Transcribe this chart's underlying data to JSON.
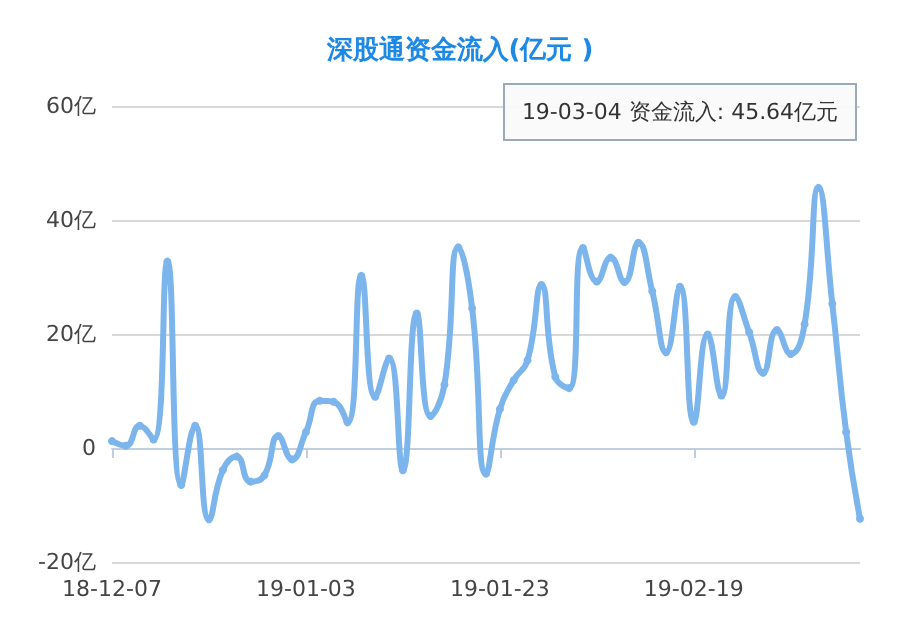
{
  "chart_data": {
    "type": "line",
    "title": "深股通资金流入(亿元 )",
    "categories": [
      "18-12-07",
      null,
      null,
      null,
      null,
      null,
      null,
      null,
      null,
      null,
      null,
      null,
      null,
      null,
      "19-01-03",
      null,
      null,
      null,
      null,
      null,
      null,
      null,
      null,
      null,
      null,
      null,
      null,
      null,
      "19-01-23",
      null,
      null,
      null,
      null,
      null,
      null,
      null,
      null,
      null,
      null,
      null,
      null,
      null,
      "19-02-19",
      null,
      null,
      null,
      null,
      null,
      null,
      null,
      null,
      null,
      null,
      null,
      null
    ],
    "series": [
      {
        "color": "#7cb5ec",
        "values": [
          1.2,
          0.4,
          3.9,
          1.5,
          32.7,
          -6.5,
          3.9,
          -12.5,
          -3.9,
          -1.5,
          -5.9,
          -4.8,
          2.1,
          -2.0,
          2.8,
          8.3,
          8.1,
          4.5,
          30.2,
          9.0,
          15.7,
          -3.9,
          23.6,
          5.6,
          11.1,
          35.2,
          24.5,
          -4.5,
          6.8,
          11.9,
          15.4,
          28.6,
          12.5,
          10.5,
          35.1,
          29.2,
          33.4,
          29.1,
          36.0,
          27.5,
          16.8,
          28.3,
          4.6,
          19.9,
          9.2,
          26.5,
          20.3,
          13.2,
          20.7,
          16.5,
          21.7,
          45.64,
          25.3,
          2.8,
          -12.4
        ]
      }
    ],
    "ylim": [
      -20,
      60
    ],
    "yticks": [
      {
        "value": -20,
        "label": "-20亿"
      },
      {
        "value": 0,
        "label": "0"
      },
      {
        "value": 20,
        "label": "20亿"
      },
      {
        "value": 40,
        "label": "40亿"
      },
      {
        "value": 60,
        "label": "60亿"
      }
    ],
    "annotations": [
      "19-03-04 资金流入: 45.64亿元"
    ],
    "grid": "y",
    "marker": "circle",
    "line_style": "solid"
  }
}
